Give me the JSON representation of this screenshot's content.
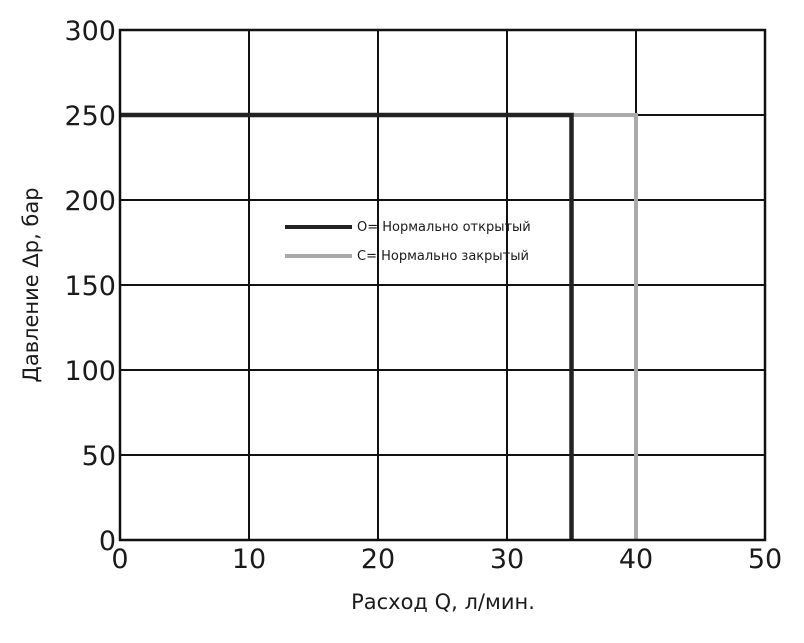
{
  "chart_data": {
    "type": "line",
    "xlabel": "Расход Q, л/мин.",
    "ylabel": "Давление Δp, бар",
    "xlim": [
      0,
      50
    ],
    "ylim": [
      0,
      300
    ],
    "x_ticks": [
      0,
      10,
      20,
      30,
      40,
      50
    ],
    "y_ticks": [
      0,
      50,
      100,
      150,
      200,
      250,
      300
    ],
    "grid": true,
    "legend_position": "center",
    "series": [
      {
        "name": "O= Нормально открытый",
        "color": "#222222",
        "points": [
          [
            0,
            250
          ],
          [
            35,
            250
          ],
          [
            35,
            0
          ]
        ]
      },
      {
        "name": "C= Нормально закрытый",
        "color": "#aaaaaa",
        "points": [
          [
            0,
            250
          ],
          [
            40,
            250
          ],
          [
            40,
            0
          ]
        ]
      }
    ]
  }
}
